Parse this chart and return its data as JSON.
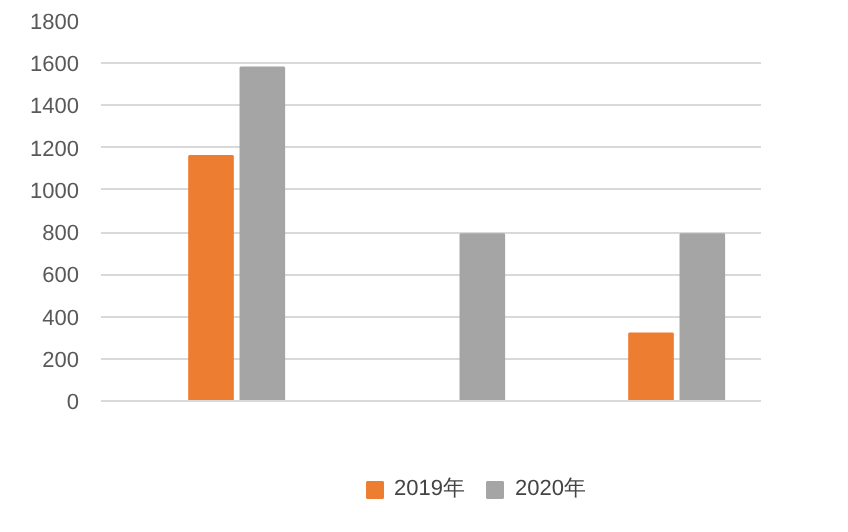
{
  "chart_data": {
    "type": "bar",
    "categories": [
      null,
      null,
      null
    ],
    "series": [
      {
        "color": "#5b9bd5",
        "values": [
          null,
          null,
          null
        ]
      },
      {
        "name": "2019年",
        "color": "#ed7d31",
        "values": [
          1160,
          null,
          320
        ]
      },
      {
        "name": "2020年",
        "color": "#a5a5a5",
        "values": [
          1580,
          790,
          790
        ]
      }
    ],
    "ylim": [
      0,
      1800
    ],
    "yticks": [
      0,
      200,
      400,
      600,
      800,
      1000,
      1200,
      1400,
      1600,
      1800
    ],
    "grid": "y",
    "legend": "bottom"
  }
}
